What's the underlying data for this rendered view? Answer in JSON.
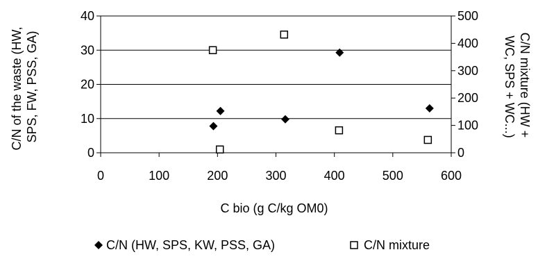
{
  "chart_data": {
    "type": "scatter",
    "xlabel": "C bio (g C/kg OM0)",
    "ylabel_left": [
      "C/N of the waste (HW,",
      "SPS, FW, PSS, GA)"
    ],
    "ylabel_right": [
      "C/N mixture (HW +",
      "WC, SPS + WC...)"
    ],
    "xlim": [
      0,
      600
    ],
    "xticks": [
      0,
      100,
      200,
      300,
      400,
      500,
      600
    ],
    "ylim_left": [
      0,
      40
    ],
    "yticks_left": [
      0,
      10,
      20,
      30,
      40
    ],
    "ylim_right": [
      0,
      500
    ],
    "yticks_right": [
      0,
      100,
      200,
      300,
      400,
      500
    ],
    "grid": "horizontal",
    "legend_position": "bottom",
    "series": [
      {
        "name": "C/N (HW, SPS, KW, PSS, GA)",
        "marker": "diamond-filled",
        "axis": "left",
        "color": "#000000",
        "points": [
          {
            "x": 193,
            "y": 7.8
          },
          {
            "x": 205,
            "y": 12.2
          },
          {
            "x": 316,
            "y": 9.8
          },
          {
            "x": 409,
            "y": 29.3
          },
          {
            "x": 563,
            "y": 13.0
          }
        ]
      },
      {
        "name": "C/N mixture",
        "marker": "square-open",
        "axis": "right",
        "color": "#000000",
        "points": [
          {
            "x": 192,
            "y": 375
          },
          {
            "x": 204,
            "y": 12
          },
          {
            "x": 314,
            "y": 432
          },
          {
            "x": 408,
            "y": 82
          },
          {
            "x": 560,
            "y": 47
          }
        ]
      }
    ]
  }
}
